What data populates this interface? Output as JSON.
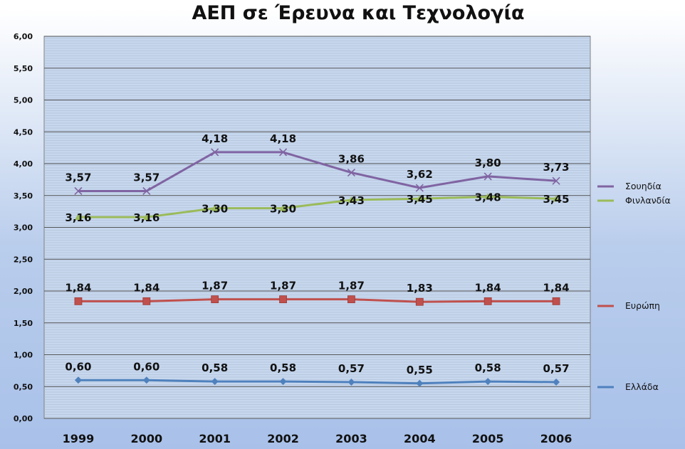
{
  "chart_data": {
    "type": "line",
    "title": "ΑΕΠ σε Έρευνα και Τεχνολογία",
    "xlabel": "",
    "ylabel": "",
    "categories": [
      "1999",
      "2000",
      "2001",
      "2002",
      "2003",
      "2004",
      "2005",
      "2006"
    ],
    "ylim": [
      0,
      6
    ],
    "yticks": [
      "0,00",
      "0,50",
      "1,00",
      "1,50",
      "2,00",
      "2,50",
      "3,00",
      "3,50",
      "4,00",
      "4,50",
      "5,00",
      "5,50",
      "6,00"
    ],
    "grid": true,
    "legend_position": "right",
    "series": [
      {
        "name": "Σουηδία",
        "color": "#8064a2",
        "marker": "x",
        "values": [
          3.57,
          3.57,
          4.18,
          4.18,
          3.86,
          3.62,
          3.8,
          3.73
        ],
        "labels": [
          "3,57",
          "3,57",
          "4,18",
          "4,18",
          "3,86",
          "3,62",
          "3,80",
          "3,73"
        ]
      },
      {
        "name": "Φινλανδία",
        "color": "#9bbb59",
        "marker": "triangle",
        "values": [
          3.16,
          3.16,
          3.3,
          3.3,
          3.43,
          3.45,
          3.48,
          3.45
        ],
        "labels": [
          "3,16",
          "3,16",
          "3,30",
          "3,30",
          "3,43",
          "3,45",
          "3,48",
          "3,45"
        ]
      },
      {
        "name": "Ευρώπη",
        "color": "#c0504d",
        "marker": "square",
        "values": [
          1.84,
          1.84,
          1.87,
          1.87,
          1.87,
          1.83,
          1.84,
          1.84
        ],
        "labels": [
          "1,84",
          "1,84",
          "1,87",
          "1,87",
          "1,87",
          "1,83",
          "1,84",
          "1,84"
        ]
      },
      {
        "name": "Ελλάδα",
        "color": "#4f81bd",
        "marker": "diamond",
        "values": [
          0.6,
          0.6,
          0.58,
          0.58,
          0.57,
          0.55,
          0.58,
          0.57
        ],
        "labels": [
          "0,60",
          "0,60",
          "0,58",
          "0,58",
          "0,57",
          "0,55",
          "0,58",
          "0,57"
        ]
      }
    ]
  }
}
